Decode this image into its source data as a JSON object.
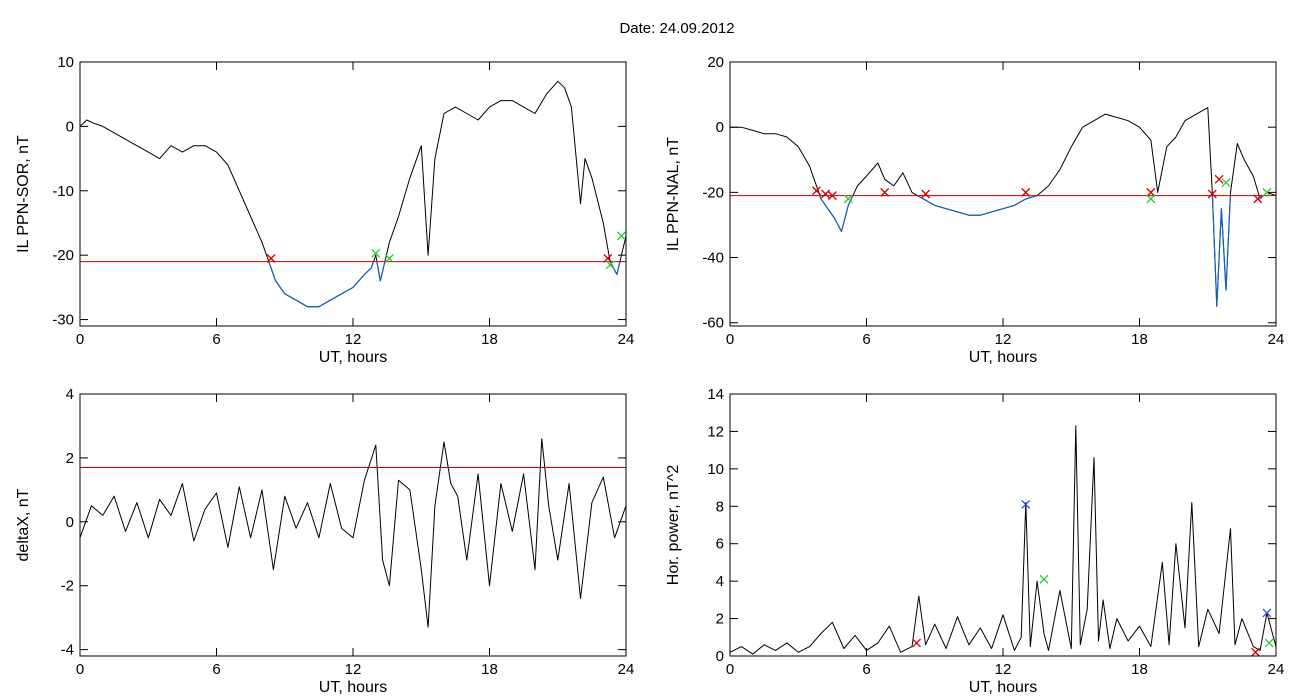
{
  "title": "Date:  24.09.2012",
  "colors": {
    "trace": "#000000",
    "threshold": "#cc0000",
    "below": "#1560bd",
    "mark_red": "#d40000",
    "mark_green": "#2ecc2e",
    "mark_blue": "#2255dd"
  },
  "chart_data": [
    {
      "type": "line",
      "xlabel": "UT, hours",
      "ylabel": "IL PPN-SOR, nT",
      "xlim": [
        0,
        24
      ],
      "ylim": [
        -31,
        10
      ],
      "xticks": [
        0,
        6,
        12,
        18,
        24
      ],
      "yticks": [
        -30,
        -20,
        -10,
        0,
        10
      ],
      "threshold": -21,
      "series": [
        {
          "x": [
            0,
            0.3,
            0.6,
            1,
            1.5,
            2,
            2.5,
            3,
            3.5,
            4,
            4.5,
            5,
            5.5,
            6,
            6.5,
            7,
            7.5,
            8,
            8.3,
            8.6,
            9,
            9.5,
            10,
            10.5,
            11,
            11.5,
            12,
            12.5,
            12.8,
            13,
            13.2,
            13.4,
            13.6,
            14,
            14.5,
            15,
            15.3,
            15.6,
            16,
            16.5,
            17,
            17.5,
            18,
            18.5,
            19,
            19.5,
            20,
            20.5,
            21,
            21.3,
            21.6,
            22,
            22.2,
            22.5,
            23,
            23.3,
            23.6,
            24
          ],
          "y": [
            0,
            1,
            0.5,
            0,
            -1,
            -2,
            -3,
            -4,
            -5,
            -3,
            -4,
            -3,
            -3,
            -4,
            -6,
            -10,
            -14,
            -18,
            -21,
            -24,
            -26,
            -27,
            -28,
            -28,
            -27,
            -26,
            -25,
            -23,
            -22,
            -20,
            -24,
            -21,
            -18,
            -14,
            -8,
            -3,
            -20,
            -5,
            2,
            3,
            2,
            1,
            3,
            4,
            4,
            3,
            2,
            5,
            7,
            6,
            3,
            -12,
            -5,
            -8,
            -15,
            -21,
            -23,
            -17
          ]
        }
      ],
      "markers": [
        {
          "x": 8.4,
          "y": -20.5,
          "color": "red"
        },
        {
          "x": 13,
          "y": -19.7,
          "color": "green"
        },
        {
          "x": 13.6,
          "y": -20.5,
          "color": "green"
        },
        {
          "x": 23.2,
          "y": -20.5,
          "color": "red"
        },
        {
          "x": 23.3,
          "y": -21.5,
          "color": "green"
        },
        {
          "x": 23.8,
          "y": -17,
          "color": "green"
        }
      ]
    },
    {
      "type": "line",
      "xlabel": "UT, hours",
      "ylabel": "IL PPN-NAL, nT",
      "xlim": [
        0,
        24
      ],
      "ylim": [
        -61,
        20
      ],
      "xticks": [
        0,
        6,
        12,
        18,
        24
      ],
      "yticks": [
        -60,
        -40,
        -20,
        0,
        20
      ],
      "threshold": -21,
      "series": [
        {
          "x": [
            0,
            0.5,
            1,
            1.5,
            2,
            2.5,
            3,
            3.5,
            3.8,
            4,
            4.3,
            4.6,
            4.9,
            5.2,
            5.6,
            6,
            6.5,
            6.8,
            7.2,
            7.6,
            8,
            8.5,
            9,
            9.5,
            10,
            10.5,
            11,
            11.5,
            12,
            12.5,
            13,
            13.5,
            14,
            14.5,
            15,
            15.5,
            16,
            16.5,
            17,
            17.5,
            18,
            18.5,
            18.8,
            19.2,
            19.6,
            20,
            20.5,
            21,
            21.2,
            21.4,
            21.6,
            21.8,
            22,
            22.3,
            22.6,
            23,
            23.3,
            23.6,
            24
          ],
          "y": [
            0,
            0,
            -1,
            -2,
            -2,
            -3,
            -6,
            -12,
            -18,
            -22,
            -25,
            -28,
            -32,
            -24,
            -18,
            -15,
            -11,
            -16,
            -18,
            -14,
            -20,
            -22,
            -24,
            -25,
            -26,
            -27,
            -27,
            -26,
            -25,
            -24,
            -22,
            -21,
            -18,
            -13,
            -6,
            0,
            2,
            4,
            3,
            2,
            0,
            -4,
            -20,
            -6,
            -3,
            2,
            4,
            6,
            -20,
            -55,
            -25,
            -50,
            -20,
            -5,
            -10,
            -15,
            -22,
            -20,
            -21
          ]
        }
      ],
      "markers": [
        {
          "x": 3.8,
          "y": -19.5,
          "color": "red"
        },
        {
          "x": 4.2,
          "y": -20.5,
          "color": "red"
        },
        {
          "x": 4.5,
          "y": -21,
          "color": "red"
        },
        {
          "x": 5.2,
          "y": -22,
          "color": "green"
        },
        {
          "x": 6.8,
          "y": -20,
          "color": "red"
        },
        {
          "x": 8.6,
          "y": -20.5,
          "color": "red"
        },
        {
          "x": 13,
          "y": -20,
          "color": "red"
        },
        {
          "x": 18.5,
          "y": -20,
          "color": "red"
        },
        {
          "x": 18.5,
          "y": -22,
          "color": "green"
        },
        {
          "x": 21.2,
          "y": -20.5,
          "color": "red"
        },
        {
          "x": 21.5,
          "y": -16,
          "color": "red"
        },
        {
          "x": 21.8,
          "y": -17,
          "color": "green"
        },
        {
          "x": 23.2,
          "y": -22,
          "color": "red"
        },
        {
          "x": 23.6,
          "y": -20,
          "color": "green"
        }
      ]
    },
    {
      "type": "line",
      "xlabel": "UT, hours",
      "ylabel": "deltaX, nT",
      "xlim": [
        0,
        24
      ],
      "ylim": [
        -4.2,
        4
      ],
      "xticks": [
        0,
        6,
        12,
        18,
        24
      ],
      "yticks": [
        -4,
        -2,
        0,
        2,
        4
      ],
      "threshold": 1.7,
      "series": [
        {
          "x": [
            0,
            0.5,
            1,
            1.5,
            2,
            2.5,
            3,
            3.5,
            4,
            4.5,
            5,
            5.5,
            6,
            6.5,
            7,
            7.5,
            8,
            8.5,
            9,
            9.5,
            10,
            10.5,
            11,
            11.5,
            12,
            12.5,
            13,
            13.3,
            13.6,
            14,
            14.5,
            15,
            15.3,
            15.6,
            16,
            16.3,
            16.6,
            17,
            17.5,
            18,
            18.5,
            19,
            19.5,
            20,
            20.3,
            20.6,
            21,
            21.5,
            22,
            22.5,
            23,
            23.5,
            24
          ],
          "y": [
            -0.5,
            0.5,
            0.2,
            0.8,
            -0.3,
            0.6,
            -0.5,
            0.7,
            0.2,
            1.2,
            -0.6,
            0.4,
            0.9,
            -0.8,
            1.1,
            -0.5,
            1,
            -1.5,
            0.8,
            -0.2,
            0.6,
            -0.5,
            1.2,
            -0.2,
            -0.5,
            1.3,
            2.4,
            -1.2,
            -2,
            1.3,
            1,
            -1.5,
            -3.3,
            0.5,
            2.5,
            1.2,
            0.8,
            -1.2,
            1.5,
            -2,
            1.2,
            -0.3,
            1.5,
            -1.5,
            2.6,
            0.5,
            -1.2,
            1.2,
            -2.4,
            0.6,
            1.4,
            -0.5,
            0.5
          ]
        }
      ],
      "markers": []
    },
    {
      "type": "line",
      "xlabel": "UT, hours",
      "ylabel": "Hor. power, nT^2",
      "xlim": [
        0,
        24
      ],
      "ylim": [
        0,
        14
      ],
      "xticks": [
        0,
        6,
        12,
        18,
        24
      ],
      "yticks": [
        0,
        2,
        4,
        6,
        8,
        10,
        12,
        14
      ],
      "threshold": null,
      "series": [
        {
          "x": [
            0,
            0.5,
            1,
            1.5,
            2,
            2.5,
            3,
            3.5,
            4,
            4.5,
            5,
            5.5,
            6,
            6.5,
            7,
            7.5,
            8,
            8.3,
            8.6,
            9,
            9.5,
            10,
            10.5,
            11,
            11.5,
            12,
            12.5,
            12.8,
            13,
            13.2,
            13.5,
            13.8,
            14,
            14.5,
            15,
            15.2,
            15.4,
            15.7,
            16,
            16.2,
            16.4,
            16.7,
            17,
            17.5,
            18,
            18.5,
            19,
            19.3,
            19.6,
            20,
            20.3,
            20.6,
            21,
            21.5,
            22,
            22.2,
            22.5,
            23,
            23.3,
            23.6,
            24
          ],
          "y": [
            0.2,
            0.5,
            0.1,
            0.6,
            0.3,
            0.7,
            0.2,
            0.5,
            1.2,
            1.8,
            0.4,
            1.1,
            0.3,
            0.7,
            1.6,
            0.2,
            0.5,
            3.2,
            0.6,
            1.7,
            0.4,
            2.1,
            0.6,
            1.5,
            0.4,
            2.2,
            0.3,
            1,
            8.2,
            0.5,
            4,
            1.2,
            0.3,
            3.5,
            0.4,
            12.3,
            0.6,
            2.5,
            10.6,
            0.8,
            3,
            0.4,
            2,
            0.8,
            1.6,
            0.5,
            5,
            0.6,
            6,
            1.5,
            8.2,
            0.5,
            2.5,
            1.2,
            6.8,
            0.6,
            2,
            0.5,
            0.3,
            2.3,
            0.5
          ]
        }
      ],
      "markers": [
        {
          "x": 8.2,
          "y": 0.7,
          "color": "red"
        },
        {
          "x": 13,
          "y": 8.1,
          "color": "blue"
        },
        {
          "x": 13.8,
          "y": 4.1,
          "color": "green"
        },
        {
          "x": 23.1,
          "y": 0.2,
          "color": "red"
        },
        {
          "x": 23.6,
          "y": 2.3,
          "color": "blue"
        },
        {
          "x": 23.7,
          "y": 0.7,
          "color": "green"
        }
      ]
    }
  ]
}
